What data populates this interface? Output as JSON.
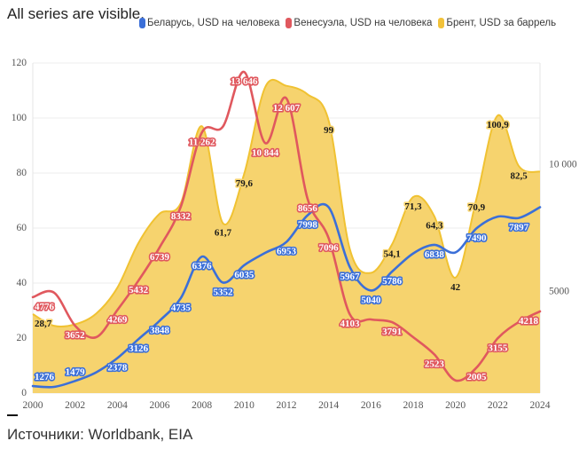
{
  "header": {
    "status_text": "All series are visible."
  },
  "legend": [
    {
      "label": "Беларусь, USD на человека",
      "color": "#3b6fd8"
    },
    {
      "label": "Венесуэла, USD на человека",
      "color": "#e0585e"
    },
    {
      "label": "Брент, USD за баррель",
      "color": "#f2c23a"
    }
  ],
  "footer": {
    "sources": "Источники: Worldbank, EIA"
  },
  "chart_data": {
    "type": "line",
    "title": "",
    "grid": true,
    "legend_position": "top",
    "x": [
      2000,
      2001,
      2002,
      2003,
      2004,
      2005,
      2006,
      2007,
      2008,
      2009,
      2010,
      2011,
      2012,
      2013,
      2014,
      2015,
      2016,
      2017,
      2018,
      2019,
      2020,
      2021,
      2022,
      2023,
      2024
    ],
    "x_ticks": [
      {
        "value": 2000,
        "label": "2000"
      },
      {
        "value": 2002,
        "label": "2002"
      },
      {
        "value": 2004,
        "label": "2004"
      },
      {
        "value": 2006,
        "label": "2006"
      },
      {
        "value": 2008,
        "label": "2008"
      },
      {
        "value": 2010,
        "label": "2010"
      },
      {
        "value": 2012,
        "label": "2012"
      },
      {
        "value": 2014,
        "label": "2014"
      },
      {
        "value": 2016,
        "label": "2016"
      },
      {
        "value": 2018,
        "label": "2018"
      },
      {
        "value": 2020,
        "label": "2020"
      },
      {
        "value": 2022,
        "label": "2022"
      },
      {
        "value": 2024,
        "label": "2024"
      }
    ],
    "y_left": {
      "label": "USD за баррель",
      "range": [
        0,
        120
      ],
      "ticks": [
        {
          "value": 0,
          "label": "0"
        },
        {
          "value": 20,
          "label": "20"
        },
        {
          "value": 40,
          "label": "40"
        },
        {
          "value": 60,
          "label": "60"
        },
        {
          "value": 80,
          "label": "80"
        },
        {
          "value": 100,
          "label": "100"
        },
        {
          "value": 120,
          "label": "120"
        }
      ]
    },
    "y_right": {
      "label": "USD на человека",
      "range": [
        1000,
        14000
      ],
      "ticks": [
        {
          "value": 5000,
          "label": "5000"
        },
        {
          "value": 10000,
          "label": "10 000"
        }
      ]
    },
    "series": [
      {
        "name": "Беларусь, USD на человека",
        "kind": "line",
        "axis": "right",
        "color": "#3b6fd8",
        "values": [
          1276,
          1244,
          1479,
          1819,
          2378,
          3126,
          3848,
          4735,
          6376,
          5352,
          6035,
          6525,
          6953,
          7998,
          8318,
          5967,
          5040,
          5786,
          6500,
          6838,
          6543,
          7490,
          7950,
          7897,
          8320
        ],
        "labels": [
          "1276",
          null,
          "1479",
          null,
          "2378",
          "3126",
          "3848",
          "4735",
          "6376",
          "5352",
          "6035",
          null,
          "6953",
          "7998",
          null,
          "5967",
          "5040",
          "5786",
          null,
          "6838",
          null,
          "7490",
          null,
          "7897",
          null
        ]
      },
      {
        "name": "Венесуэла, USD на человека",
        "kind": "line",
        "axis": "right",
        "color": "#e0585e",
        "values": [
          4776,
          4960,
          3652,
          3200,
          4269,
          5432,
          6739,
          8332,
          11262,
          11500,
          13646,
          10844,
          12607,
          8656,
          7096,
          4103,
          3900,
          3791,
          3200,
          2523,
          1500,
          2005,
          3155,
          3800,
          4218
        ],
        "labels": [
          "4776",
          null,
          "3652",
          null,
          "4269",
          "5432",
          "6739",
          "8332",
          "11 262",
          null,
          "13 646",
          "10 844",
          "12 607",
          "8656",
          "7096",
          "4103",
          null,
          "3791",
          null,
          "2523",
          null,
          "2005",
          "3155",
          null,
          "4218"
        ]
      },
      {
        "name": "Брент, USD за баррель",
        "kind": "area",
        "axis": "left",
        "color": "#f0c232",
        "fill": "#f6d36e",
        "values": [
          28.7,
          24.5,
          25.0,
          28.9,
          38.3,
          54.6,
          65.2,
          69.0,
          97.0,
          61.7,
          79.6,
          111.3,
          111.7,
          108.6,
          99.0,
          52.4,
          43.7,
          54.1,
          71.3,
          64.3,
          42.0,
          70.9,
          100.9,
          82.5,
          80.5
        ],
        "labels": [
          "28,7",
          null,
          null,
          null,
          null,
          null,
          null,
          null,
          null,
          "61,7",
          "79,6",
          null,
          null,
          null,
          "99",
          null,
          null,
          "54,1",
          "71,3",
          "64,3",
          "42",
          "70,9",
          "100,9",
          "82,5",
          null
        ]
      }
    ]
  }
}
